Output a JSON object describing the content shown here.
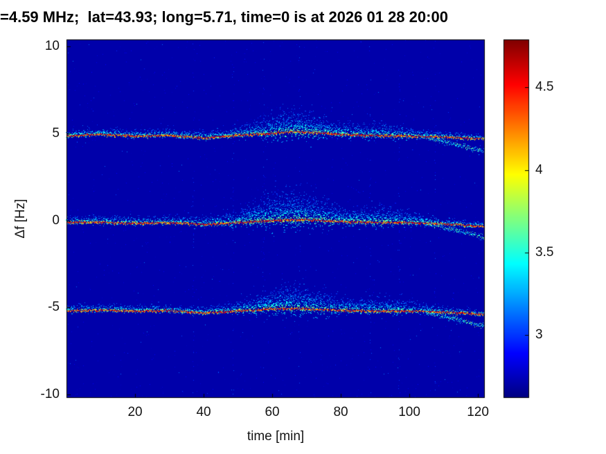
{
  "chart_data": {
    "type": "heatmap",
    "title": "=4.59 MHz;  lat=43.93; long=5.71, time=0 is at 2026 01 28 20:00",
    "xlabel": "time [min]",
    "ylabel": "Δf [Hz]",
    "xlim": [
      0,
      122
    ],
    "ylim": [
      -10.2,
      10.4
    ],
    "xticks": [
      20,
      40,
      60,
      80,
      100,
      120
    ],
    "yticks": [
      10,
      5,
      0,
      -5,
      -10
    ],
    "colorbar": {
      "colormap": "jet",
      "range": [
        2.62,
        4.79
      ],
      "ticks": [
        4.5,
        4,
        3.5,
        3
      ]
    },
    "background_value": 2.71,
    "artifact_times": [
      37,
      48.5,
      57.5,
      68,
      88.5,
      97,
      107.5
    ],
    "bands": [
      {
        "name": "upper-sideband",
        "center": 5,
        "trace": [
          [
            0,
            -0.15
          ],
          [
            10,
            -0.05
          ],
          [
            20,
            -0.15
          ],
          [
            30,
            -0.1
          ],
          [
            40,
            -0.25
          ],
          [
            50,
            -0.1
          ],
          [
            60,
            0.0
          ],
          [
            66,
            0.1
          ],
          [
            72,
            0.05
          ],
          [
            80,
            -0.05
          ],
          [
            90,
            -0.12
          ],
          [
            100,
            -0.15
          ],
          [
            108,
            -0.2
          ],
          [
            115,
            -0.25
          ],
          [
            122,
            -0.3
          ]
        ],
        "cloud": {
          "base": 0.18,
          "bumps": [
            [
              66,
              13,
              0.5
            ],
            [
              92,
              10,
              0.18
            ]
          ]
        },
        "split": {
          "start": 104,
          "delta": -0.75
        }
      },
      {
        "name": "carrier",
        "center": 0,
        "trace": [
          [
            0,
            -0.1
          ],
          [
            10,
            -0.1
          ],
          [
            20,
            -0.15
          ],
          [
            30,
            -0.12
          ],
          [
            40,
            -0.22
          ],
          [
            48,
            -0.15
          ],
          [
            55,
            -0.05
          ],
          [
            62,
            0.0
          ],
          [
            68,
            0.05
          ],
          [
            75,
            0.0
          ],
          [
            82,
            -0.08
          ],
          [
            90,
            -0.1
          ],
          [
            100,
            -0.12
          ],
          [
            108,
            -0.18
          ],
          [
            115,
            -0.25
          ],
          [
            122,
            -0.35
          ]
        ],
        "cloud": {
          "base": 0.2,
          "bumps": [
            [
              65,
              14,
              0.7
            ],
            [
              92,
              10,
              0.28
            ]
          ]
        },
        "split": {
          "start": 104,
          "delta": -0.6
        }
      },
      {
        "name": "lower-sideband",
        "center": -5,
        "trace": [
          [
            0,
            -0.2
          ],
          [
            10,
            -0.15
          ],
          [
            20,
            -0.2
          ],
          [
            30,
            -0.18
          ],
          [
            40,
            -0.3
          ],
          [
            50,
            -0.2
          ],
          [
            58,
            -0.1
          ],
          [
            65,
            -0.05
          ],
          [
            72,
            -0.1
          ],
          [
            80,
            -0.15
          ],
          [
            90,
            -0.2
          ],
          [
            100,
            -0.2
          ],
          [
            108,
            -0.25
          ],
          [
            115,
            -0.3
          ],
          [
            122,
            -0.4
          ]
        ],
        "cloud": {
          "base": 0.18,
          "bumps": [
            [
              66,
              13,
              0.55
            ],
            [
              92,
              10,
              0.2
            ]
          ]
        },
        "split": {
          "start": 104,
          "delta": -0.7
        }
      }
    ]
  }
}
